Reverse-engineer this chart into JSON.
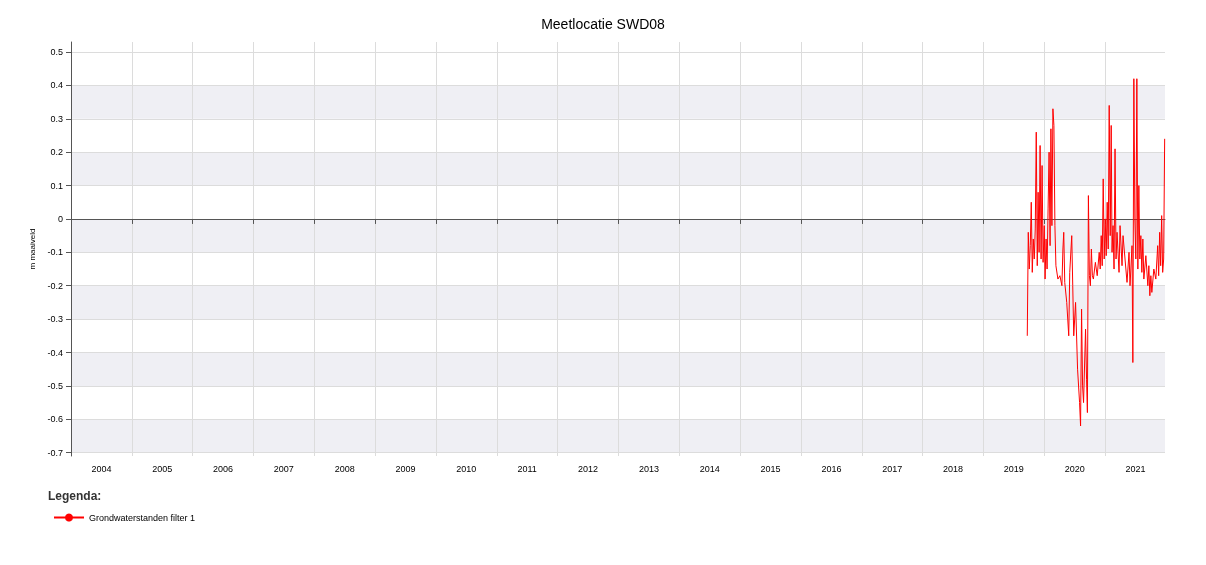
{
  "chart_data": {
    "type": "line",
    "title": "Meetlocatie SWD08",
    "ylabel": "m maaiveld",
    "legend_title": "Legenda:",
    "legend": "bottom left",
    "grid": true,
    "marker": "none",
    "line_style": "solid",
    "xlim": [
      "2004-01-01",
      "2021-12-26"
    ],
    "xticks": [
      {
        "value": "2004-07-02",
        "label": "2004"
      },
      {
        "value": "2005-01-01",
        "label": null
      },
      {
        "value": "2005-07-02",
        "label": "2005"
      },
      {
        "value": "2006-01-01",
        "label": null
      },
      {
        "value": "2006-07-02",
        "label": "2006"
      },
      {
        "value": "2007-01-01",
        "label": null
      },
      {
        "value": "2007-07-02",
        "label": "2007"
      },
      {
        "value": "2008-01-01",
        "label": null
      },
      {
        "value": "2008-07-02",
        "label": "2008"
      },
      {
        "value": "2009-01-01",
        "label": null
      },
      {
        "value": "2009-07-02",
        "label": "2009"
      },
      {
        "value": "2010-01-01",
        "label": null
      },
      {
        "value": "2010-07-02",
        "label": "2010"
      },
      {
        "value": "2011-01-01",
        "label": null
      },
      {
        "value": "2011-07-02",
        "label": "2011"
      },
      {
        "value": "2012-01-01",
        "label": null
      },
      {
        "value": "2012-07-02",
        "label": "2012"
      },
      {
        "value": "2013-01-01",
        "label": null
      },
      {
        "value": "2013-07-02",
        "label": "2013"
      },
      {
        "value": "2014-01-01",
        "label": null
      },
      {
        "value": "2014-07-02",
        "label": "2014"
      },
      {
        "value": "2015-01-01",
        "label": null
      },
      {
        "value": "2015-07-02",
        "label": "2015"
      },
      {
        "value": "2016-01-01",
        "label": null
      },
      {
        "value": "2016-07-02",
        "label": "2016"
      },
      {
        "value": "2017-01-01",
        "label": null
      },
      {
        "value": "2017-07-02",
        "label": "2017"
      },
      {
        "value": "2018-01-01",
        "label": null
      },
      {
        "value": "2018-07-02",
        "label": "2018"
      },
      {
        "value": "2019-01-01",
        "label": null
      },
      {
        "value": "2019-07-02",
        "label": "2019"
      },
      {
        "value": "2020-01-01",
        "label": null
      },
      {
        "value": "2020-07-02",
        "label": "2020"
      },
      {
        "value": "2021-01-01",
        "label": null
      },
      {
        "value": "2021-07-02",
        "label": "2021"
      }
    ],
    "ylim": [
      -0.71,
      0.53
    ],
    "yticks": [
      -0.7,
      -0.6,
      -0.5,
      -0.4,
      -0.3,
      -0.2,
      -0.1,
      0,
      0.1,
      0.2,
      0.3,
      0.4,
      0.5
    ],
    "series": [
      {
        "name": "Grondwaterstanden filter 1",
        "color": "#ff0000",
        "x": [
          "2019-09-21",
          "2019-09-27",
          "2019-10-03",
          "2019-10-09",
          "2019-10-15",
          "2019-10-21",
          "2019-10-27",
          "2019-11-02",
          "2019-11-08",
          "2019-11-14",
          "2019-11-20",
          "2019-11-25",
          "2019-12-01",
          "2019-12-07",
          "2019-12-13",
          "2019-12-19",
          "2019-12-25",
          "2020-01-01",
          "2020-01-06",
          "2020-01-12",
          "2020-01-18",
          "2020-01-24",
          "2020-01-30",
          "2020-02-05",
          "2020-02-10",
          "2020-02-16",
          "2020-02-22",
          "2020-02-28",
          "2020-03-05",
          "2020-03-11",
          "2020-03-23",
          "2020-04-04",
          "2020-04-16",
          "2020-04-22",
          "2020-04-27",
          "2020-05-03",
          "2020-05-15",
          "2020-05-27",
          "2020-06-02",
          "2020-06-14",
          "2020-06-20",
          "2020-06-26",
          "2020-07-07",
          "2020-07-19",
          "2020-07-31",
          "2020-08-06",
          "2020-08-12",
          "2020-08-18",
          "2020-08-24",
          "2020-09-05",
          "2020-09-11",
          "2020-09-16",
          "2020-09-22",
          "2020-09-28",
          "2020-10-04",
          "2020-10-10",
          "2020-10-16",
          "2020-10-22",
          "2020-11-03",
          "2020-11-14",
          "2020-11-26",
          "2020-12-02",
          "2020-12-08",
          "2020-12-14",
          "2020-12-20",
          "2020-12-26",
          "2021-01-01",
          "2021-01-07",
          "2021-01-13",
          "2021-01-19",
          "2021-01-25",
          "2021-01-31",
          "2021-02-06",
          "2021-02-11",
          "2021-02-17",
          "2021-02-23",
          "2021-03-01",
          "2021-03-07",
          "2021-03-13",
          "2021-03-25",
          "2021-03-31",
          "2021-04-12",
          "2021-04-18",
          "2021-04-30",
          "2021-05-12",
          "2021-05-24",
          "2021-05-30",
          "2021-06-11",
          "2021-06-16",
          "2021-06-22",
          "2021-06-28",
          "2021-07-04",
          "2021-07-10",
          "2021-07-16",
          "2021-07-22",
          "2021-07-28",
          "2021-08-03",
          "2021-08-09",
          "2021-08-15",
          "2021-08-21",
          "2021-09-02",
          "2021-09-14",
          "2021-09-20",
          "2021-09-26",
          "2021-10-02",
          "2021-10-08",
          "2021-10-20",
          "2021-11-01",
          "2021-11-12",
          "2021-11-18",
          "2021-11-24",
          "2021-11-30",
          "2021-12-06",
          "2021-12-12",
          "2021-12-18",
          "2021-12-24"
        ],
        "values": [
          -0.35,
          -0.04,
          -0.15,
          -0.08,
          0.05,
          -0.16,
          -0.06,
          -0.12,
          -0.03,
          0.26,
          -0.14,
          0.08,
          -0.1,
          0.22,
          -0.12,
          0.16,
          -0.13,
          -0.02,
          -0.18,
          -0.06,
          -0.15,
          0.03,
          0.2,
          -0.08,
          0.27,
          -0.02,
          0.33,
          0.28,
          -0.02,
          -0.14,
          -0.18,
          -0.17,
          -0.2,
          -0.09,
          -0.04,
          -0.19,
          -0.25,
          -0.35,
          -0.16,
          -0.05,
          -0.2,
          -0.35,
          -0.25,
          -0.45,
          -0.55,
          -0.62,
          -0.27,
          -0.5,
          -0.55,
          -0.33,
          -0.48,
          -0.58,
          0.07,
          -0.17,
          -0.2,
          -0.09,
          -0.17,
          -0.18,
          -0.13,
          -0.17,
          -0.1,
          -0.15,
          -0.05,
          -0.14,
          0.12,
          -0.12,
          0.0,
          -0.11,
          0.05,
          -0.09,
          0.34,
          -0.05,
          0.28,
          -0.1,
          -0.02,
          -0.15,
          0.21,
          -0.12,
          -0.04,
          -0.16,
          -0.02,
          -0.14,
          -0.05,
          -0.12,
          -0.19,
          -0.1,
          -0.2,
          -0.08,
          -0.43,
          0.42,
          0.0,
          -0.12,
          0.42,
          -0.15,
          0.1,
          -0.12,
          -0.05,
          -0.16,
          -0.06,
          -0.18,
          -0.11,
          -0.2,
          -0.14,
          -0.23,
          -0.17,
          -0.22,
          -0.15,
          -0.18,
          -0.08,
          -0.17,
          -0.04,
          -0.14,
          0.01,
          -0.16,
          -0.12,
          0.24
        ]
      }
    ]
  }
}
